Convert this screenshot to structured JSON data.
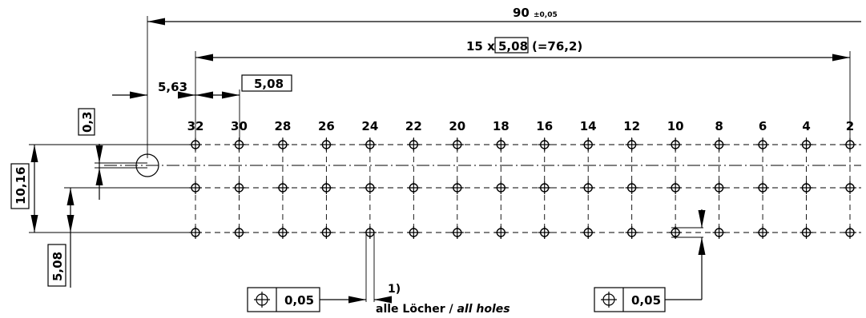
{
  "overall_width": {
    "value": "90",
    "tolerance": "±0,05"
  },
  "pitch_span": {
    "prefix": "15 x",
    "pitch": "5,08",
    "suffix": "(=76,2)"
  },
  "offset_5_63": "5,63",
  "pitch_box": "5,08",
  "row_offset": "0,3",
  "height_10_16": "10,16",
  "height_5_08": "5,08",
  "pin_labels": [
    "32",
    "30",
    "28",
    "26",
    "24",
    "22",
    "20",
    "18",
    "16",
    "14",
    "12",
    "10",
    "8",
    "6",
    "4",
    "2"
  ],
  "tolerance_left": "0,05",
  "tolerance_right": "0,05",
  "note_ref": "1)",
  "note_text_de": "alle Löcher / ",
  "note_text_en": "all holes"
}
